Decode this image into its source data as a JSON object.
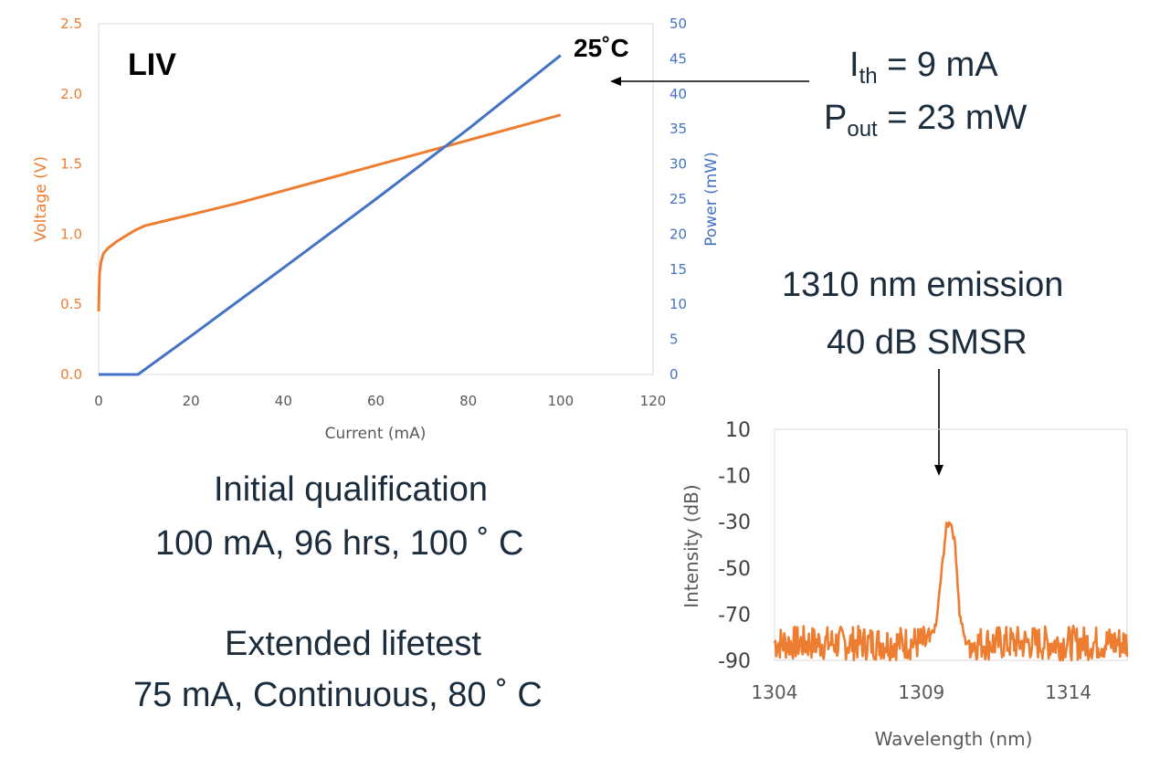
{
  "colors": {
    "voltage": "#ED7D31",
    "power": "#4472C4",
    "spectrum": "#ED7D31",
    "text": "#1B2C3C",
    "axis": "#595959",
    "grid": "#D9D9D9"
  },
  "liv": {
    "label": "LIV",
    "temperature": "25˚C",
    "xlabel": "Current (mA)",
    "ylabel_left": "Voltage (V)",
    "ylabel_right": "Power (mW)",
    "xticks": [
      "0",
      "20",
      "40",
      "60",
      "80",
      "100",
      "120"
    ],
    "yticks_left": [
      "0.0",
      "0.5",
      "1.0",
      "1.5",
      "2.0",
      "2.5"
    ],
    "yticks_right": [
      "0",
      "5",
      "10",
      "15",
      "20",
      "25",
      "30",
      "35",
      "40",
      "45",
      "50"
    ]
  },
  "threshold": {
    "prefix": "I",
    "sub": "th",
    "value": " = 9 mA"
  },
  "power_out": {
    "prefix": "P",
    "sub": "out",
    "value": " = 23 mW"
  },
  "emission_line1": "1310 nm emission",
  "emission_line2": "40 dB SMSR",
  "qualification": {
    "title": "Initial qualification",
    "conditions": "100 mA, 96 hrs, 100 ˚ C"
  },
  "lifetest": {
    "title": "Extended lifetest",
    "conditions": "75 mA, Continuous, 80 ˚ C"
  },
  "spectrum": {
    "xlabel": "Wavelength (nm)",
    "ylabel": "Intensity (dB)",
    "xticks": [
      "1304",
      "1309",
      "1314"
    ],
    "yticks": [
      "10",
      "-10",
      "-30",
      "-50",
      "-70",
      "-90"
    ]
  },
  "chart_data": [
    {
      "type": "line",
      "xlabel": "Current (mA)",
      "xlim": [
        0,
        120
      ],
      "grid": false,
      "series": [
        {
          "name": "Voltage (V)",
          "axis": "left",
          "ylim": [
            0,
            2.5
          ],
          "x": [
            0,
            0.2,
            0.5,
            1,
            2,
            4,
            6,
            8,
            10,
            15,
            20,
            30,
            40,
            50,
            60,
            70,
            80,
            90,
            100
          ],
          "y": [
            0.45,
            0.72,
            0.8,
            0.86,
            0.9,
            0.95,
            0.99,
            1.03,
            1.06,
            1.1,
            1.14,
            1.22,
            1.31,
            1.4,
            1.49,
            1.58,
            1.67,
            1.76,
            1.85
          ]
        },
        {
          "name": "Power (mW)",
          "axis": "right",
          "ylim": [
            0,
            50
          ],
          "x": [
            0,
            8.5,
            20,
            40,
            60,
            80,
            100
          ],
          "y": [
            0,
            0,
            5.5,
            15.2,
            25,
            35,
            45.5
          ]
        }
      ]
    },
    {
      "type": "line",
      "xlabel": "Wavelength (nm)",
      "ylabel": "Intensity (dB)",
      "xlim": [
        1304,
        1316
      ],
      "ylim": [
        -90,
        10
      ],
      "grid": false,
      "series": [
        {
          "x": [
            1304,
            1309.2,
            1309.5,
            1309.7,
            1309.85,
            1310.0,
            1310.15,
            1310.3,
            1310.5,
            1310.8,
            1316
          ],
          "y": [
            -82,
            -82,
            -75,
            -50,
            -32,
            -30,
            -40,
            -70,
            -82,
            -84,
            -82
          ],
          "noise_floor": [
            -90,
            -75
          ]
        }
      ]
    }
  ]
}
